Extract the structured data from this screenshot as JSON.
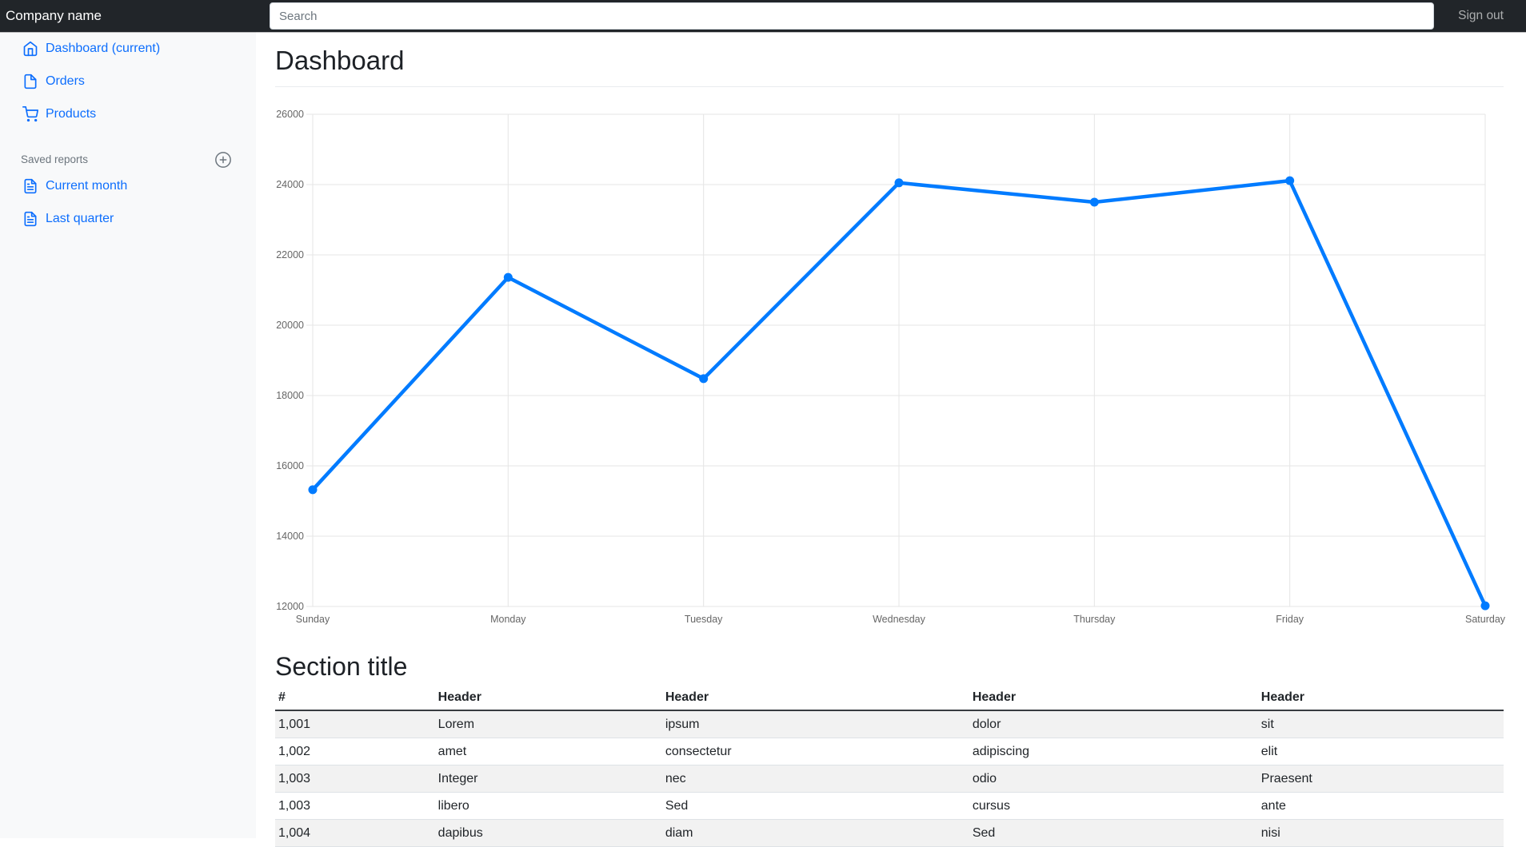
{
  "navbar": {
    "brand": "Company name",
    "search_placeholder": "Search",
    "sign_out_label": "Sign out"
  },
  "sidebar": {
    "items": [
      {
        "label": "Dashboard (current)",
        "icon": "home-icon"
      },
      {
        "label": "Orders",
        "icon": "file-icon"
      },
      {
        "label": "Products",
        "icon": "shopping-cart-icon"
      }
    ],
    "saved_reports_heading": "Saved reports",
    "reports": [
      {
        "label": "Current month",
        "icon": "file-text-icon"
      },
      {
        "label": "Last quarter",
        "icon": "file-text-icon"
      }
    ]
  },
  "main": {
    "page_title": "Dashboard",
    "section_title": "Section title"
  },
  "chart_data": {
    "type": "line",
    "title": "",
    "xlabel": "",
    "ylabel": "",
    "categories": [
      "Sunday",
      "Monday",
      "Tuesday",
      "Wednesday",
      "Thursday",
      "Friday",
      "Saturday"
    ],
    "values": [
      15320,
      21360,
      18480,
      24050,
      23500,
      24110,
      12020
    ],
    "ylim": [
      12000,
      26000
    ],
    "ytick_step": 2000,
    "grid": true,
    "legend": "none",
    "line_color": "#007bff",
    "point_color": "#007bff",
    "grid_color": "#e5e5e5",
    "tick_color": "#666666"
  },
  "table": {
    "headers": [
      "#",
      "Header",
      "Header",
      "Header",
      "Header"
    ],
    "rows": [
      [
        "1,001",
        "Lorem",
        "ipsum",
        "dolor",
        "sit"
      ],
      [
        "1,002",
        "amet",
        "consectetur",
        "adipiscing",
        "elit"
      ],
      [
        "1,003",
        "Integer",
        "nec",
        "odio",
        "Praesent"
      ],
      [
        "1,003",
        "libero",
        "Sed",
        "cursus",
        "ante"
      ],
      [
        "1,004",
        "dapibus",
        "diam",
        "Sed",
        "nisi"
      ]
    ]
  },
  "colors": {
    "navbar_bg": "#212529",
    "sidebar_bg": "#f8f9fa",
    "link_accent": "#0d6efd",
    "muted_text": "#6c757d",
    "table_stripe": "#f2f2f2",
    "chart_line": "#007bff"
  }
}
